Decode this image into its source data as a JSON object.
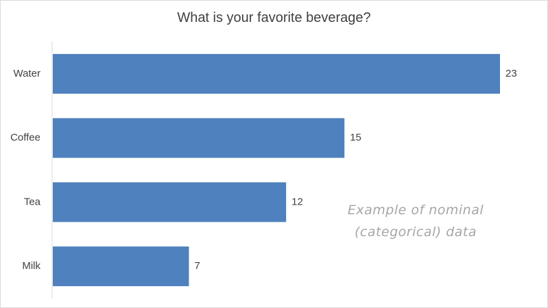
{
  "chart_data": {
    "type": "bar",
    "orientation": "horizontal",
    "title": "What is your favorite beverage?",
    "categories": [
      "Water",
      "Coffee",
      "Tea",
      "Milk"
    ],
    "values": [
      23,
      15,
      12,
      7
    ],
    "xlim": [
      0,
      25
    ],
    "grid": false,
    "legend": "none",
    "data_labels": true
  },
  "annotation": {
    "line1": "Example of nominal",
    "line2": "(categorical) data"
  },
  "colors": {
    "bar": "#4e81bd",
    "text": "#404040",
    "axis": "#d9d9d9",
    "annotation": "#a6a6a6"
  }
}
